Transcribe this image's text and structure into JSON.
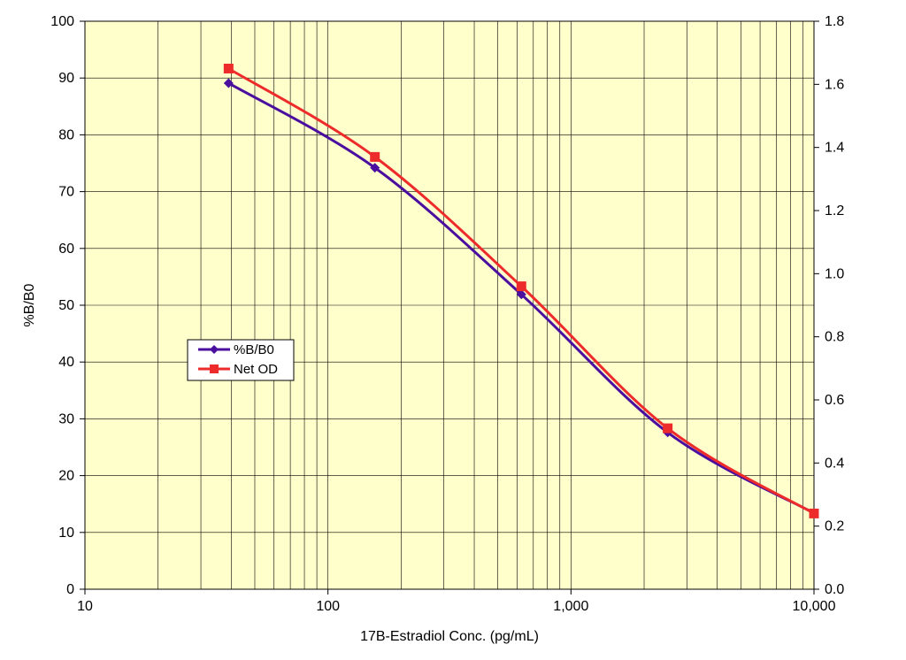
{
  "chart_data": {
    "type": "line",
    "title": "",
    "xlabel": "17B-Estradiol Conc. (pg/mL)",
    "ylabel": "%B/B0",
    "y2label": "",
    "x_scale": "log",
    "xlim": [
      10,
      10000
    ],
    "ylim": [
      0,
      100
    ],
    "y2lim": [
      0,
      1.8
    ],
    "grid": true,
    "plot_background": "#ffffcc",
    "x_ticks": [
      10,
      100,
      1000,
      10000
    ],
    "x_tick_labels": [
      "10",
      "100",
      "1,000",
      "10,000"
    ],
    "y_ticks": [
      0,
      10,
      20,
      30,
      40,
      50,
      60,
      70,
      80,
      90,
      100
    ],
    "y_tick_labels": [
      "0",
      "10",
      "20",
      "30",
      "40",
      "50",
      "60",
      "70",
      "80",
      "90",
      "100"
    ],
    "y2_ticks": [
      0,
      0.2,
      0.4,
      0.6,
      0.8,
      1.0,
      1.2,
      1.4,
      1.6,
      1.8
    ],
    "y2_tick_labels": [
      "0.0",
      "0.2",
      "0.4",
      "0.6",
      "0.8",
      "1.0",
      "1.2",
      "1.4",
      "1.6",
      "1.8"
    ],
    "legend_position": "left-middle",
    "series": [
      {
        "name": "%B/B0",
        "axis": "left",
        "color": "#4b0fa0",
        "marker": "diamond",
        "x": [
          39,
          156,
          625,
          2500,
          10000
        ],
        "y": [
          89.1,
          74.2,
          51.9,
          27.6,
          13.4
        ]
      },
      {
        "name": "Net OD",
        "axis": "right",
        "color": "#ee2b2b",
        "marker": "square",
        "x": [
          39,
          156,
          625,
          2500,
          10000
        ],
        "y": [
          1.65,
          1.37,
          0.96,
          0.51,
          0.24
        ]
      }
    ]
  }
}
